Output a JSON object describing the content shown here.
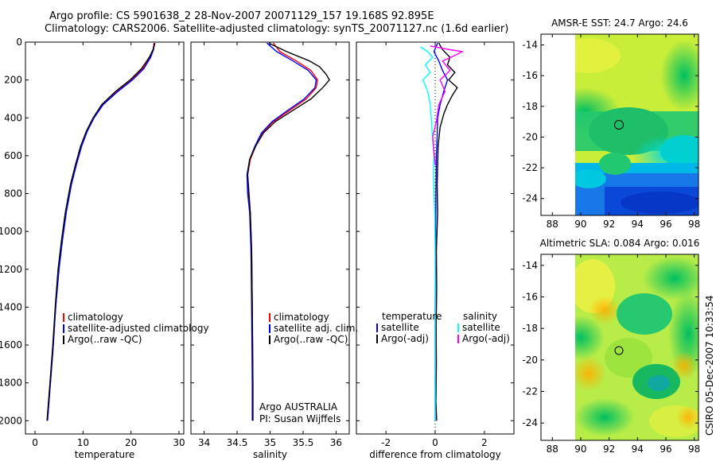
{
  "title": {
    "line1": "Argo profile: CS 5901638_2 28-Nov-2007 20071129_157 19.168S 92.895E",
    "line2": "Climatology: CARS2006. Satellite-adjusted climatology: synTS_20071127.nc (1.6d earlier)"
  },
  "side_label": "CSIRO 05-Dec-2007 10:33:54",
  "colors": {
    "red": "#ff0000",
    "blue": "#0000ff",
    "black": "#000000",
    "cyan": "#00ffff",
    "magenta": "#ff00ff"
  },
  "chart_data": [
    {
      "type": "line",
      "xlabel": "temperature",
      "xlim": [
        -2,
        31
      ],
      "ylim": [
        2070,
        0
      ],
      "xticks": [
        0,
        10,
        20,
        30
      ],
      "yticks": [
        0,
        200,
        400,
        600,
        800,
        1000,
        1200,
        1400,
        1600,
        1800,
        2000
      ],
      "legend": [
        "climatology",
        "satellite-adjusted climatology",
        "Argo(..raw -QC)"
      ],
      "series": [
        {
          "name": "climatology",
          "color": "red",
          "points": [
            [
              24.8,
              5
            ],
            [
              24.6,
              40
            ],
            [
              24.0,
              80
            ],
            [
              22.5,
              140
            ],
            [
              20.0,
              200
            ],
            [
              17.0,
              260
            ],
            [
              14.0,
              330
            ],
            [
              12.2,
              400
            ],
            [
              10.8,
              470
            ],
            [
              9.6,
              550
            ],
            [
              8.5,
              650
            ],
            [
              7.5,
              750
            ],
            [
              6.4,
              900
            ],
            [
              5.6,
              1050
            ],
            [
              4.9,
              1200
            ],
            [
              4.3,
              1400
            ],
            [
              3.8,
              1600
            ],
            [
              3.2,
              1800
            ],
            [
              2.6,
              2000
            ]
          ]
        },
        {
          "name": "satellite-adjusted climatology",
          "color": "blue",
          "points": [
            [
              24.9,
              5
            ],
            [
              24.7,
              40
            ],
            [
              24.1,
              80
            ],
            [
              22.7,
              140
            ],
            [
              20.3,
              200
            ],
            [
              17.3,
              260
            ],
            [
              14.2,
              330
            ],
            [
              12.3,
              400
            ],
            [
              10.9,
              470
            ],
            [
              9.7,
              550
            ],
            [
              8.6,
              650
            ],
            [
              7.6,
              750
            ],
            [
              6.5,
              900
            ],
            [
              5.7,
              1050
            ],
            [
              5.0,
              1200
            ],
            [
              4.3,
              1400
            ],
            [
              3.8,
              1600
            ],
            [
              3.2,
              1800
            ],
            [
              2.6,
              2000
            ]
          ]
        },
        {
          "name": "Argo(..raw -QC)",
          "color": "black",
          "points": [
            [
              25.0,
              5
            ],
            [
              24.6,
              40
            ],
            [
              23.8,
              80
            ],
            [
              22.2,
              140
            ],
            [
              19.8,
              200
            ],
            [
              16.8,
              260
            ],
            [
              13.9,
              330
            ],
            [
              12.1,
              400
            ],
            [
              10.7,
              470
            ],
            [
              9.5,
              550
            ],
            [
              8.4,
              650
            ],
            [
              7.4,
              750
            ],
            [
              6.3,
              900
            ],
            [
              5.5,
              1050
            ],
            [
              4.8,
              1200
            ],
            [
              4.2,
              1400
            ],
            [
              3.7,
              1600
            ],
            [
              3.1,
              1800
            ],
            [
              2.5,
              2000
            ]
          ]
        }
      ]
    },
    {
      "type": "line",
      "xlabel": "salinity",
      "xlim": [
        33.8,
        36.2
      ],
      "ylim": [
        2070,
        0
      ],
      "xticks": [
        34,
        34.5,
        35,
        35.5,
        36
      ],
      "legend": [
        "climatology",
        "satellite adj. clim.",
        "Argo(..raw -QC)"
      ],
      "annotation": [
        "Argo AUSTRALIA",
        "PI: Susan Wijffels"
      ],
      "series": [
        {
          "name": "climatology",
          "color": "red",
          "points": [
            [
              35.05,
              5
            ],
            [
              35.15,
              50
            ],
            [
              35.4,
              100
            ],
            [
              35.62,
              150
            ],
            [
              35.72,
              200
            ],
            [
              35.7,
              240
            ],
            [
              35.55,
              300
            ],
            [
              35.3,
              360
            ],
            [
              35.05,
              420
            ],
            [
              34.88,
              480
            ],
            [
              34.78,
              550
            ],
            [
              34.7,
              620
            ],
            [
              34.66,
              700
            ],
            [
              34.67,
              800
            ],
            [
              34.7,
              900
            ],
            [
              34.72,
              1100
            ],
            [
              34.73,
              1400
            ],
            [
              34.74,
              1800
            ],
            [
              34.74,
              2000
            ]
          ]
        },
        {
          "name": "satellite adj. clim.",
          "color": "blue",
          "points": [
            [
              34.95,
              5
            ],
            [
              35.1,
              50
            ],
            [
              35.35,
              100
            ],
            [
              35.58,
              150
            ],
            [
              35.7,
              200
            ],
            [
              35.68,
              240
            ],
            [
              35.52,
              300
            ],
            [
              35.27,
              360
            ],
            [
              35.03,
              420
            ],
            [
              34.87,
              480
            ],
            [
              34.77,
              550
            ],
            [
              34.69,
              620
            ],
            [
              34.65,
              700
            ],
            [
              34.66,
              800
            ],
            [
              34.69,
              900
            ],
            [
              34.71,
              1100
            ],
            [
              34.72,
              1400
            ],
            [
              34.73,
              1800
            ],
            [
              34.73,
              2000
            ]
          ]
        },
        {
          "name": "Argo(..raw -QC)",
          "color": "black",
          "points": [
            [
              34.98,
              5
            ],
            [
              35.25,
              50
            ],
            [
              35.6,
              100
            ],
            [
              35.75,
              130
            ],
            [
              35.85,
              170
            ],
            [
              35.9,
              200
            ],
            [
              35.8,
              240
            ],
            [
              35.62,
              300
            ],
            [
              35.35,
              360
            ],
            [
              35.08,
              420
            ],
            [
              34.9,
              480
            ],
            [
              34.78,
              550
            ],
            [
              34.69,
              620
            ],
            [
              34.66,
              700
            ],
            [
              34.68,
              800
            ],
            [
              34.7,
              900
            ],
            [
              34.72,
              1100
            ],
            [
              34.73,
              1400
            ],
            [
              34.74,
              1800
            ],
            [
              34.74,
              2000
            ]
          ]
        }
      ]
    },
    {
      "type": "line",
      "xlabel": "difference from climatology",
      "xlim": [
        -3.2,
        3.2
      ],
      "ylim": [
        2070,
        0
      ],
      "xticks": [
        -2,
        0,
        2
      ],
      "legend_temperature": {
        "heading": "temperature",
        "entries": [
          "satellite",
          "Argo(-adj)"
        ]
      },
      "legend_salinity": {
        "heading": "salinity",
        "entries": [
          "satellite",
          "Argo(-adj)"
        ]
      },
      "series": [
        {
          "name": "temperature satellite",
          "color": "blue",
          "points": [
            [
              0.1,
              5
            ],
            [
              -0.05,
              50
            ],
            [
              0.15,
              100
            ],
            [
              0.3,
              150
            ],
            [
              0.5,
              200
            ],
            [
              0.35,
              260
            ],
            [
              0.2,
              330
            ],
            [
              0.1,
              400
            ],
            [
              0.08,
              500
            ],
            [
              0.05,
              600
            ],
            [
              0.04,
              700
            ],
            [
              0.03,
              800
            ],
            [
              0.02,
              1000
            ],
            [
              0.01,
              1200
            ],
            [
              0.0,
              1400
            ],
            [
              0.0,
              1700
            ],
            [
              0.0,
              2000
            ]
          ]
        },
        {
          "name": "temperature Argo(-adj)",
          "color": "black",
          "points": [
            [
              0.15,
              5
            ],
            [
              0.3,
              40
            ],
            [
              0.6,
              80
            ],
            [
              0.5,
              120
            ],
            [
              0.8,
              160
            ],
            [
              0.55,
              200
            ],
            [
              0.9,
              240
            ],
            [
              0.7,
              280
            ],
            [
              0.5,
              330
            ],
            [
              0.35,
              380
            ],
            [
              0.2,
              450
            ],
            [
              0.12,
              550
            ],
            [
              0.1,
              650
            ],
            [
              0.08,
              750
            ],
            [
              0.1,
              900
            ],
            [
              0.05,
              1100
            ],
            [
              0.06,
              1300
            ],
            [
              0.04,
              1500
            ],
            [
              0.05,
              1700
            ],
            [
              0.03,
              1900
            ],
            [
              0.06,
              2000
            ]
          ]
        },
        {
          "name": "salinity satellite",
          "color": "cyan",
          "points": [
            [
              -0.6,
              25
            ],
            [
              -0.3,
              50
            ],
            [
              -0.1,
              80
            ],
            [
              -0.4,
              120
            ],
            [
              -0.2,
              160
            ],
            [
              -0.5,
              200
            ],
            [
              -0.3,
              260
            ],
            [
              -0.2,
              330
            ],
            [
              -0.15,
              420
            ],
            [
              -0.1,
              520
            ],
            [
              -0.05,
              600
            ],
            [
              -0.08,
              700
            ],
            [
              -0.05,
              800
            ],
            [
              -0.02,
              900
            ],
            [
              0.0,
              1100
            ],
            [
              0.0,
              1400
            ],
            [
              0.0,
              1700
            ],
            [
              0.0,
              2000
            ]
          ]
        },
        {
          "name": "salinity Argo(-adj)",
          "color": "magenta",
          "points": [
            [
              -0.2,
              20
            ],
            [
              0.6,
              40
            ],
            [
              1.1,
              50
            ],
            [
              0.8,
              70
            ],
            [
              0.3,
              100
            ],
            [
              0.6,
              150
            ],
            [
              0.2,
              200
            ],
            [
              0.4,
              260
            ],
            [
              0.15,
              330
            ],
            [
              0.05,
              420
            ],
            [
              -0.1,
              500
            ],
            [
              -0.05,
              580
            ],
            [
              0.0,
              650
            ]
          ]
        }
      ]
    },
    {
      "type": "heatmap",
      "title": "AMSR-E SST: 24.7 Argo: 24.6",
      "xlim": [
        87.2,
        98.3
      ],
      "ylim": [
        -25.1,
        -13.3
      ],
      "xticks": [
        88,
        90,
        92,
        94,
        96,
        98
      ],
      "yticks": [
        -14,
        -16,
        -18,
        -20,
        -22,
        -24
      ],
      "data_extent": {
        "lon": [
          90,
          98.2
        ],
        "lat": [
          -25.1,
          -13.3
        ]
      },
      "marker": {
        "lon": 92.9,
        "lat": -19.2
      }
    },
    {
      "type": "heatmap",
      "title": "Altimetric SLA: 0.084 Argo: 0.016",
      "xlim": [
        87.2,
        98.3
      ],
      "ylim": [
        -25.1,
        -13.3
      ],
      "xticks": [
        88,
        90,
        92,
        94,
        96,
        98
      ],
      "yticks": [
        -14,
        -16,
        -18,
        -20,
        -22,
        -24
      ],
      "data_extent": {
        "lon": [
          90,
          98.2
        ],
        "lat": [
          -25.1,
          -13.3
        ]
      },
      "marker": {
        "lon": 92.9,
        "lat": -19.2
      }
    }
  ]
}
